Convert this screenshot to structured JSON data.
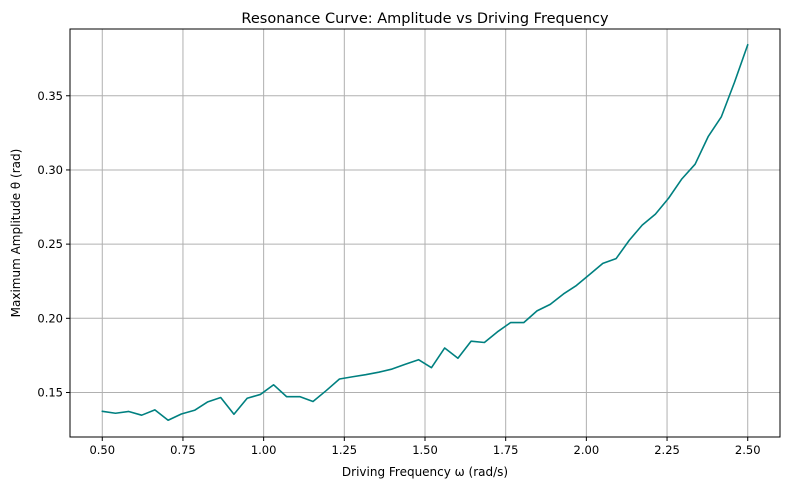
{
  "chart_data": {
    "type": "line",
    "title": "Resonance Curve: Amplitude vs Driving Frequency",
    "xlabel": "Driving Frequency ω (rad/s)",
    "ylabel": "Maximum Amplitude θ (rad)",
    "xlim": [
      0.4,
      2.6
    ],
    "ylim": [
      0.12,
      0.395
    ],
    "grid": true,
    "xticks": [
      0.5,
      0.75,
      1.0,
      1.25,
      1.5,
      1.75,
      2.0,
      2.25,
      2.5
    ],
    "xtick_labels": [
      "0.50",
      "0.75",
      "1.00",
      "1.25",
      "1.50",
      "1.75",
      "2.00",
      "2.25",
      "2.50"
    ],
    "yticks": [
      0.15,
      0.2,
      0.25,
      0.3,
      0.35
    ],
    "ytick_labels": [
      "0.15",
      "0.20",
      "0.25",
      "0.30",
      "0.35"
    ],
    "series": [
      {
        "color": "#008080",
        "x": [
          0.5,
          0.541,
          0.582,
          0.622,
          0.663,
          0.704,
          0.745,
          0.786,
          0.827,
          0.867,
          0.908,
          0.949,
          0.99,
          1.031,
          1.071,
          1.112,
          1.153,
          1.194,
          1.235,
          1.276,
          1.316,
          1.357,
          1.398,
          1.439,
          1.48,
          1.52,
          1.561,
          1.602,
          1.643,
          1.684,
          1.724,
          1.765,
          1.806,
          1.847,
          1.888,
          1.929,
          1.969,
          2.01,
          2.051,
          2.092,
          2.133,
          2.173,
          2.214,
          2.255,
          2.296,
          2.337,
          2.378,
          2.418,
          2.459,
          2.5
        ],
        "y": [
          0.1373,
          0.136,
          0.1372,
          0.1347,
          0.1383,
          0.1313,
          0.1355,
          0.138,
          0.1437,
          0.1466,
          0.1353,
          0.1461,
          0.1487,
          0.1552,
          0.1472,
          0.1472,
          0.1439,
          0.1513,
          0.1591,
          0.1606,
          0.162,
          0.1637,
          0.1658,
          0.169,
          0.1721,
          0.1667,
          0.18,
          0.1731,
          0.1846,
          0.1837,
          0.1908,
          0.1971,
          0.1971,
          0.205,
          0.2094,
          0.2164,
          0.2221,
          0.2295,
          0.237,
          0.2402,
          0.2526,
          0.2628,
          0.2702,
          0.281,
          0.294,
          0.3039,
          0.3227,
          0.3357,
          0.3591,
          0.3844
        ]
      }
    ]
  }
}
